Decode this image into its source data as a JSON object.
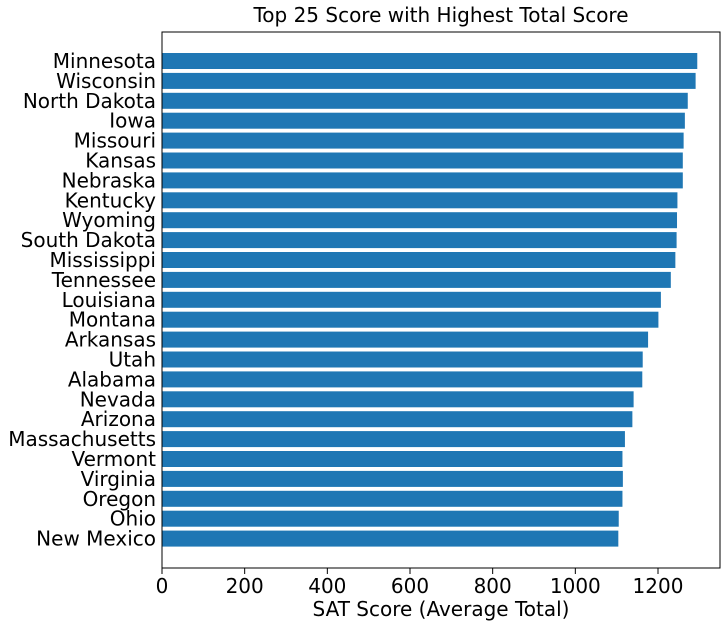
{
  "chart_data": {
    "type": "bar",
    "orientation": "horizontal",
    "title": "Top 25 Score with Highest Total Score",
    "xlabel": "SAT Score (Average Total)",
    "ylabel": "",
    "xlim": [
      0,
      1350
    ],
    "xticks": [
      0,
      200,
      400,
      600,
      800,
      1000,
      1200
    ],
    "grid": false,
    "bar_color": "#1f77b4",
    "categories": [
      "Minnesota",
      "Wisconsin",
      "North Dakota",
      "Iowa",
      "Missouri",
      "Kansas",
      "Nebraska",
      "Kentucky",
      "Wyoming",
      "South Dakota",
      "Mississippi",
      "Tennessee",
      "Louisiana",
      "Montana",
      "Arkansas",
      "Utah",
      "Alabama",
      "Nevada",
      "Arizona",
      "Massachusetts",
      "Vermont",
      "Virginia",
      "Oregon",
      "Ohio",
      "New Mexico"
    ],
    "values": [
      1295,
      1291,
      1272,
      1265,
      1262,
      1260,
      1260,
      1247,
      1246,
      1245,
      1242,
      1231,
      1207,
      1201,
      1176,
      1163,
      1162,
      1141,
      1138,
      1120,
      1114,
      1115,
      1114,
      1105,
      1104
    ]
  }
}
